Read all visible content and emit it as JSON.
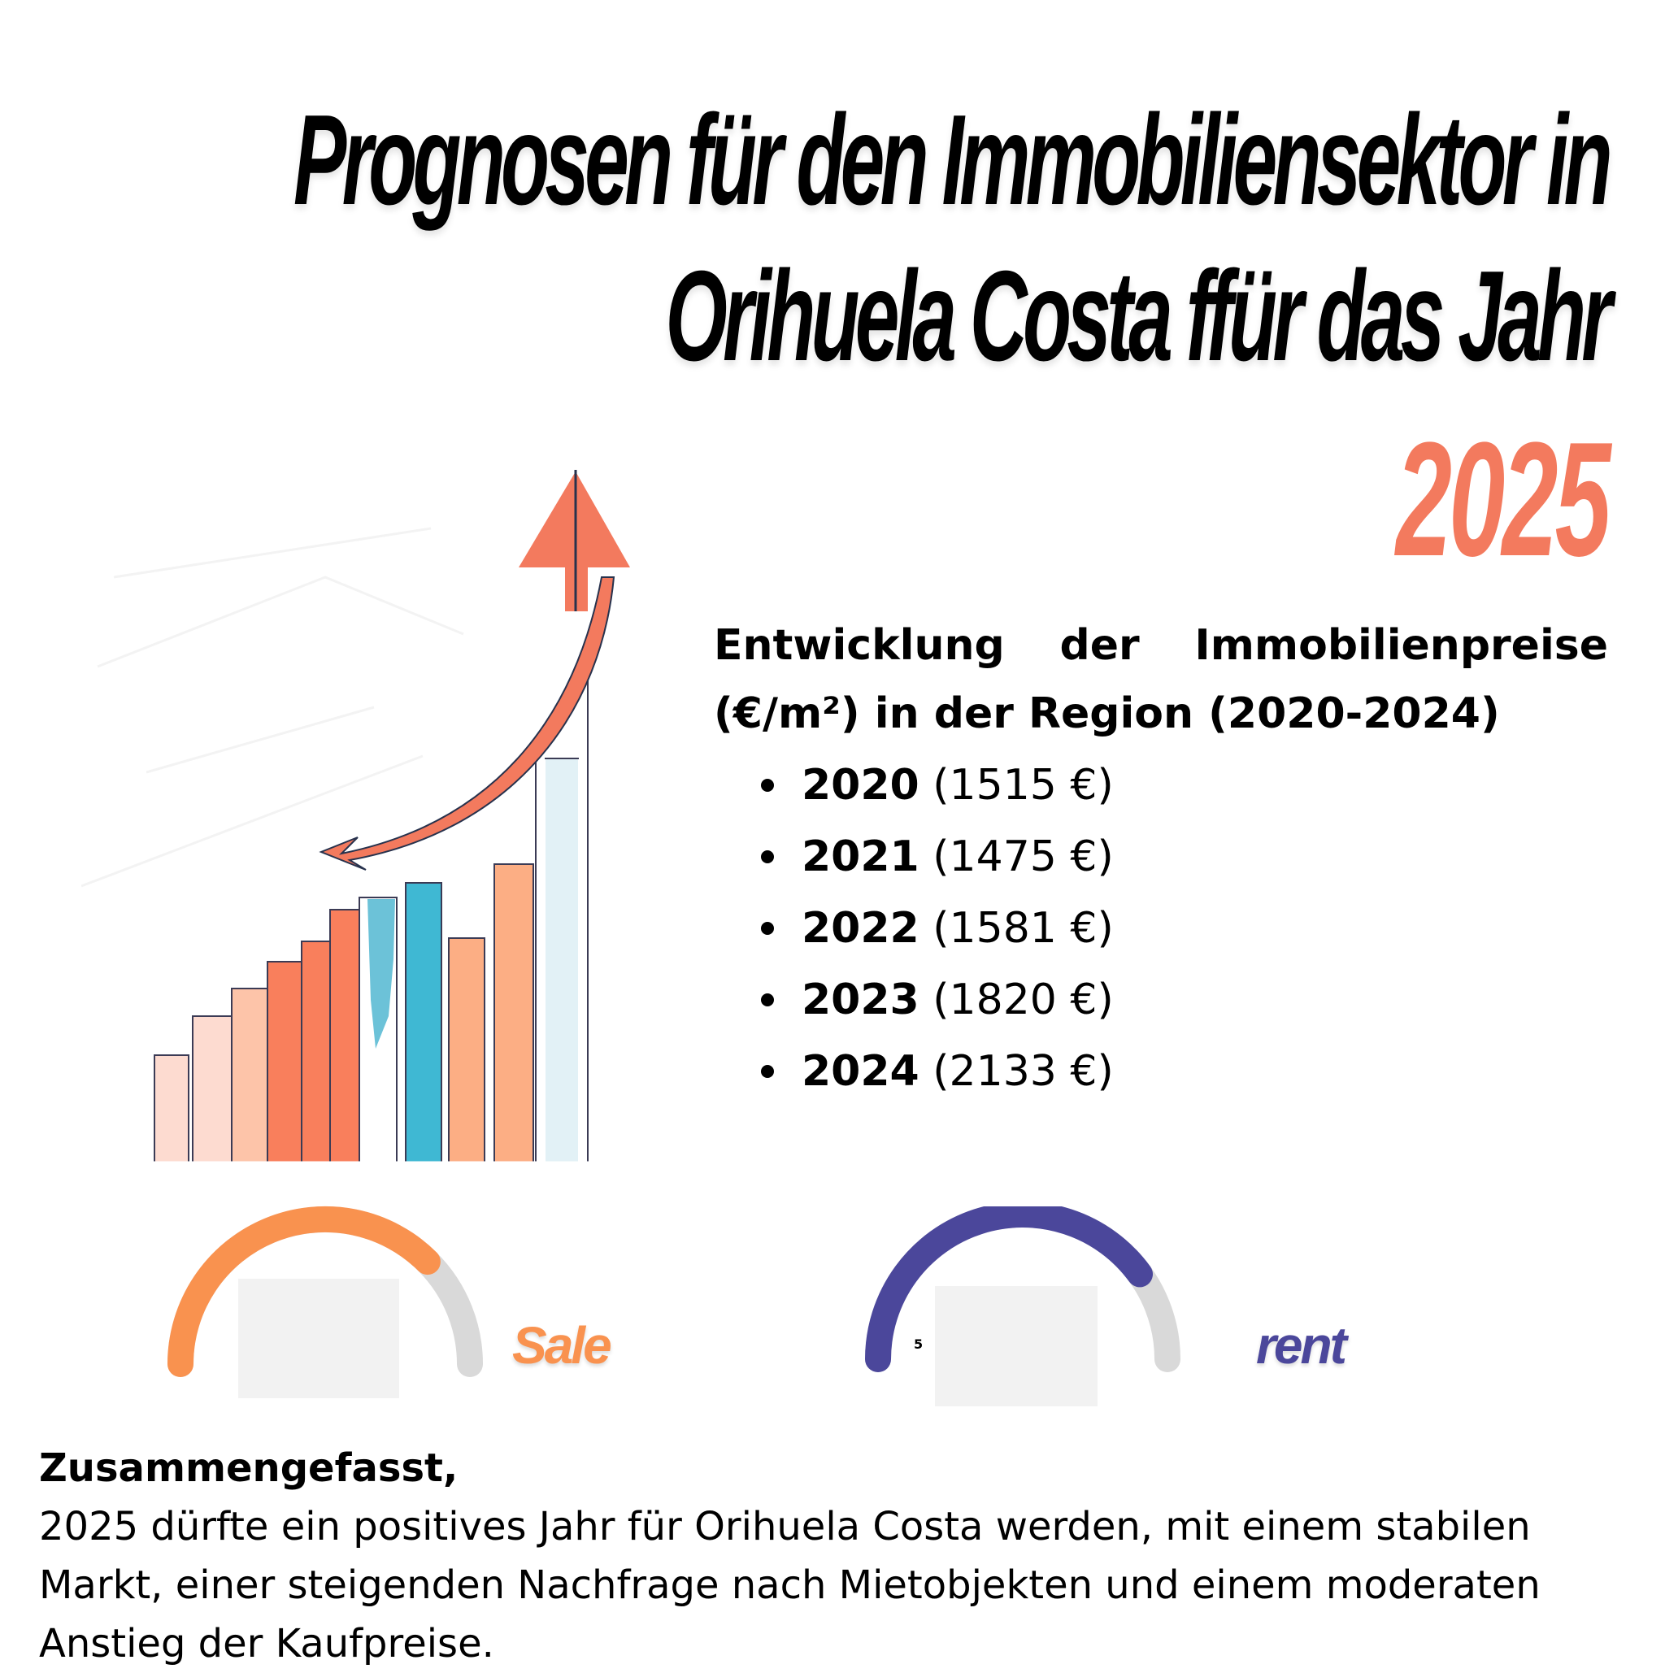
{
  "title": {
    "line1": "Prognosen für den Immobiliensektor in",
    "line2": "Orihuela Costa ffür das Jahr",
    "year": "2025"
  },
  "prices": {
    "heading": "Entwicklung der Immobilienpreise (€/m²) in der Region (2020-2024)",
    "items": [
      {
        "year": "2020",
        "value": "(1515 €)"
      },
      {
        "year": "2021",
        "value": "(1475 €)"
      },
      {
        "year": "2022",
        "value": "(1581 €)"
      },
      {
        "year": "2023",
        "value": "(1820 €)"
      },
      {
        "year": "2024",
        "value": "(2133 €)"
      }
    ]
  },
  "gauges": {
    "sale": {
      "label": "Sale",
      "color": "#f9924f",
      "track_color": "#d9d9d9",
      "level": 0.75
    },
    "rent": {
      "label": "rent",
      "color": "#4b479b",
      "track_color": "#d9d9d9",
      "level": 0.8,
      "tick": "5"
    }
  },
  "illustration": {
    "arrow_color": "#f37a5e",
    "bar_colors": [
      "#fddbd0",
      "#fddbd0",
      "#fdc4a9",
      "#f97f5c",
      "#f97f5c",
      "#f97f5c",
      "#6cc2d8",
      "#3fb8d3",
      "#fcae84",
      "#fcae84",
      "#e2f1f6"
    ]
  },
  "summary": {
    "heading": "Zusammengefasst,",
    "body": "2025 dürfte ein positives Jahr für Orihuela Costa werden, mit einem stabilen Markt, einer steigenden Nachfrage nach Mietobjekten und einem moderaten Anstieg der Kaufpreise."
  }
}
